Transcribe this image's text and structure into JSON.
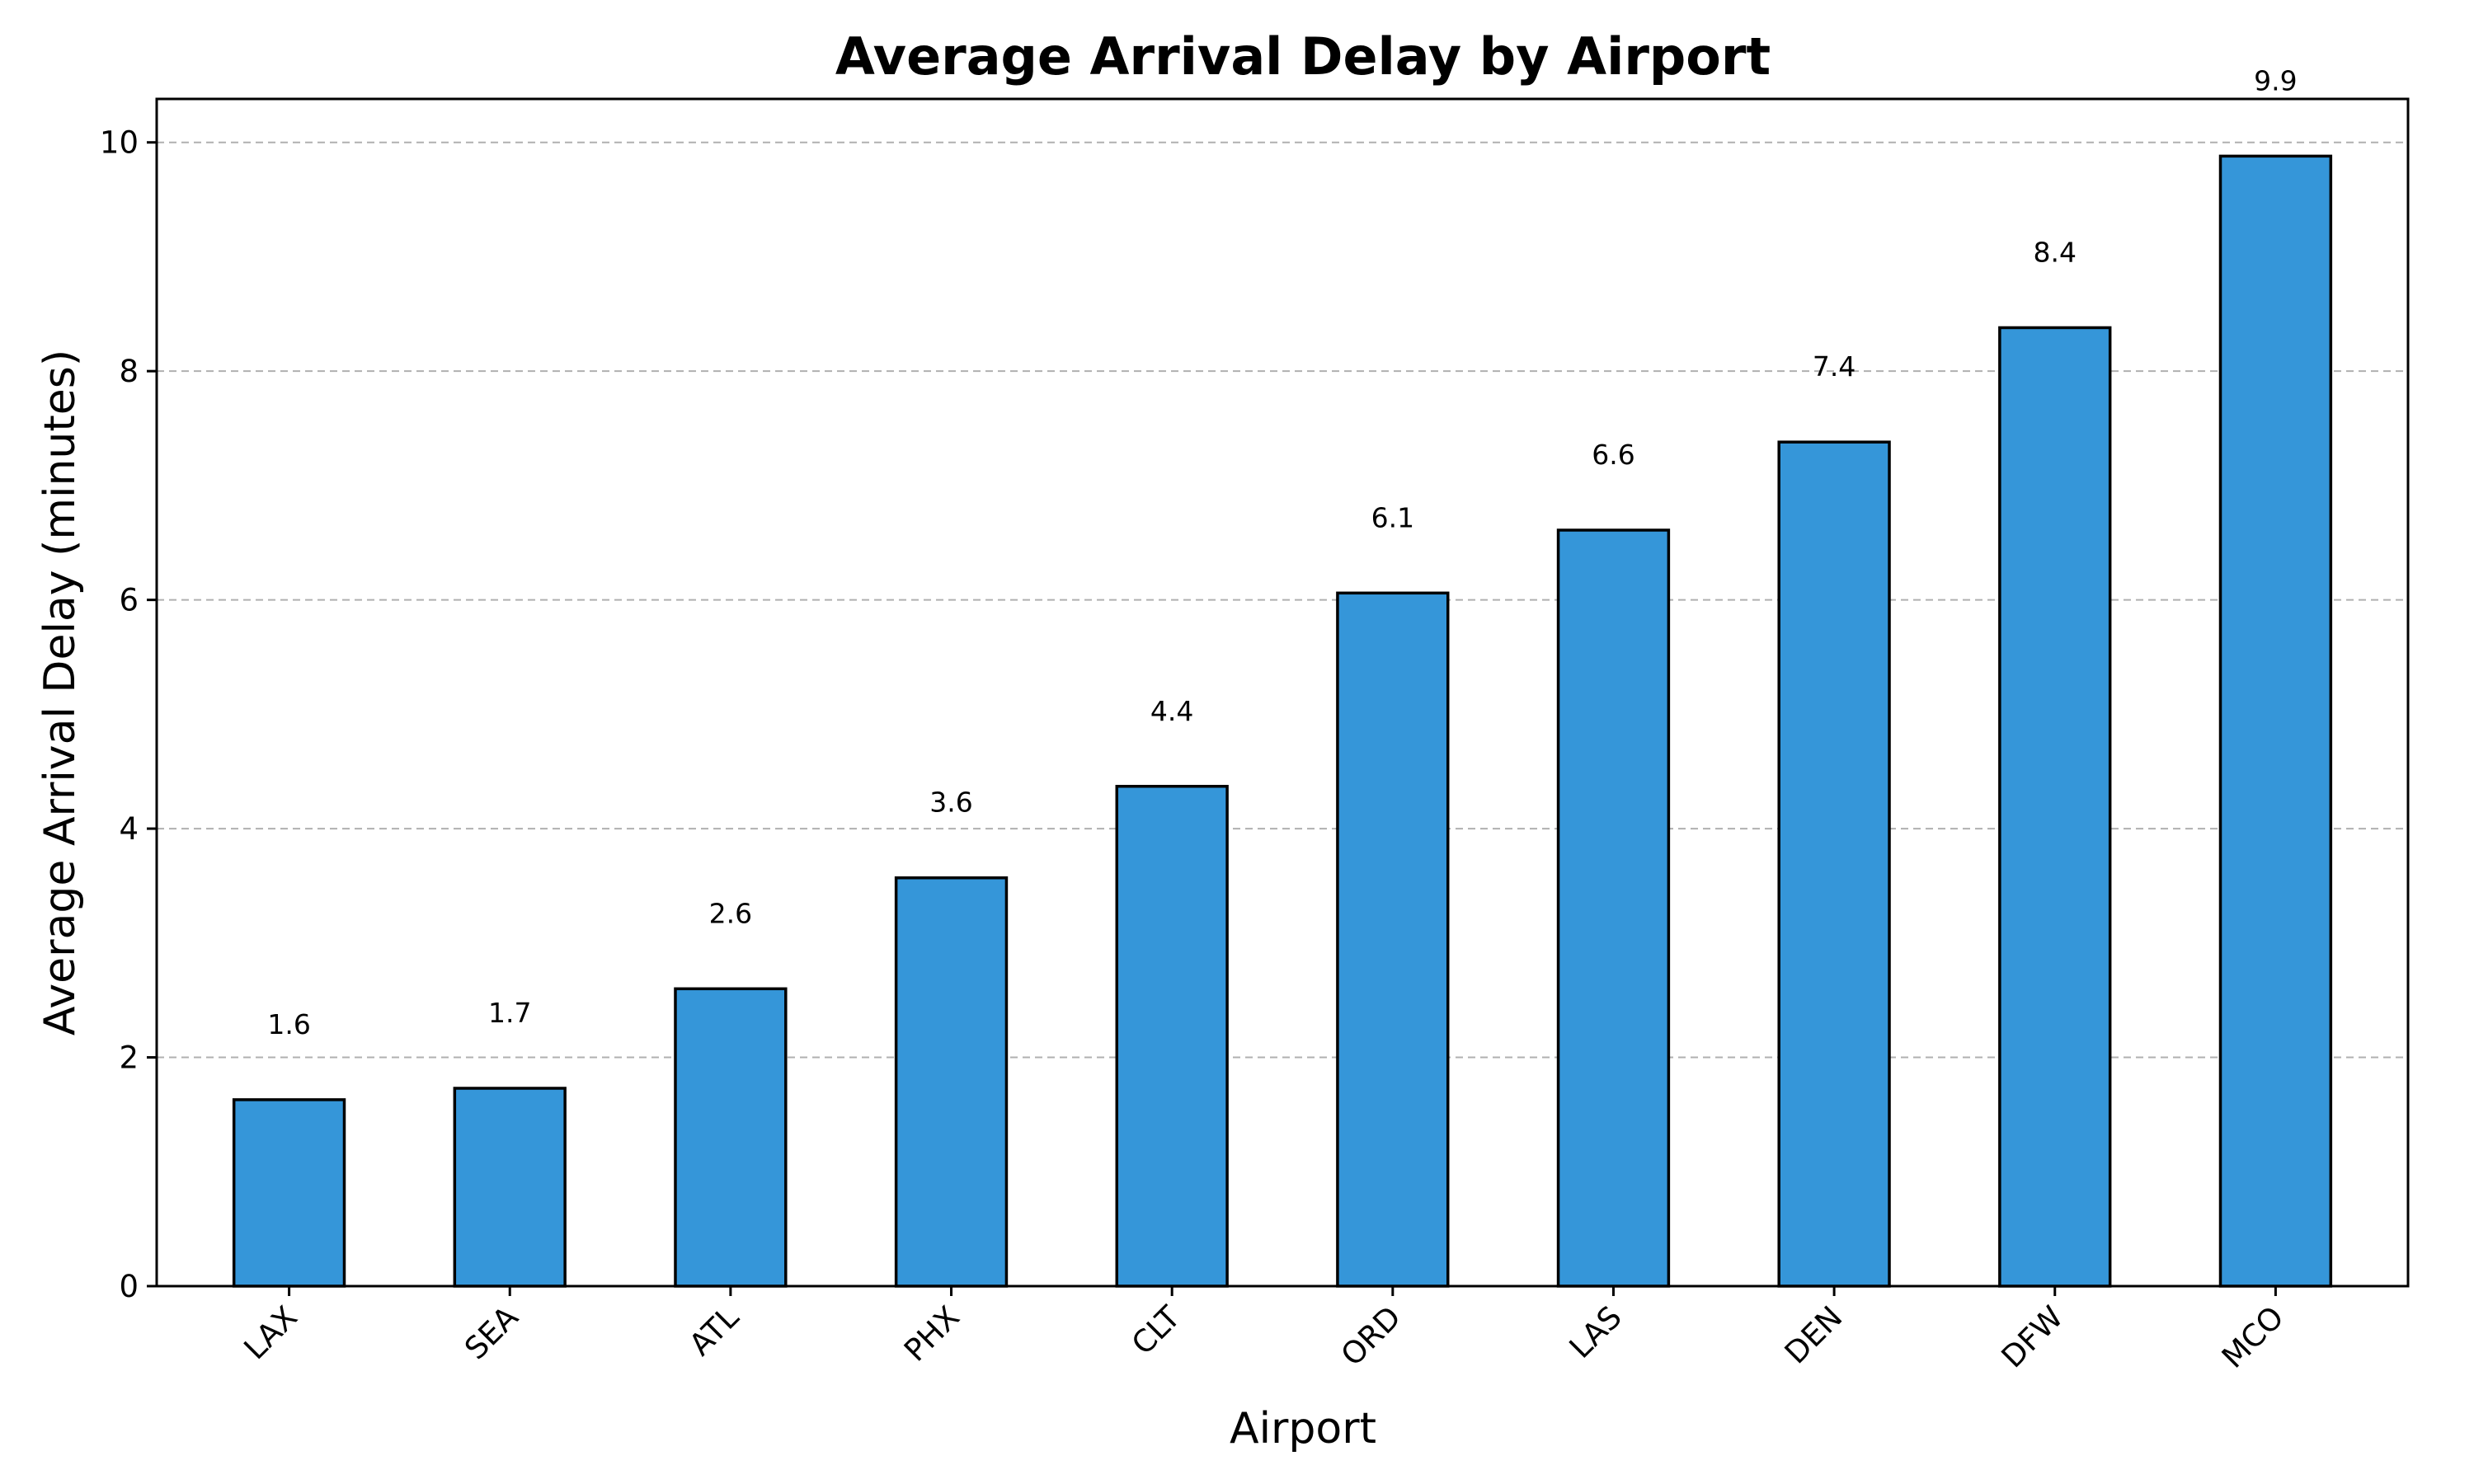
{
  "chart_data": {
    "type": "bar",
    "title": "Average Arrival Delay by Airport",
    "xlabel": "Airport",
    "ylabel": "Average Arrival Delay (minutes)",
    "categories": [
      "LAX",
      "SEA",
      "ATL",
      "PHX",
      "CLT",
      "ORD",
      "LAS",
      "DEN",
      "DFW",
      "MCO"
    ],
    "values": [
      1.63,
      1.73,
      2.6,
      3.57,
      4.37,
      6.06,
      6.61,
      7.38,
      8.38,
      9.88
    ],
    "value_labels": [
      "1.6",
      "1.7",
      "2.6",
      "3.6",
      "4.4",
      "6.1",
      "6.6",
      "7.4",
      "8.4",
      "9.9"
    ],
    "ylim": [
      0,
      10.38
    ],
    "yticks": [
      0,
      2,
      4,
      6,
      8,
      10
    ],
    "grid": "y-dashed",
    "bar_color": "#3596d9",
    "edge_color": "#000000"
  }
}
